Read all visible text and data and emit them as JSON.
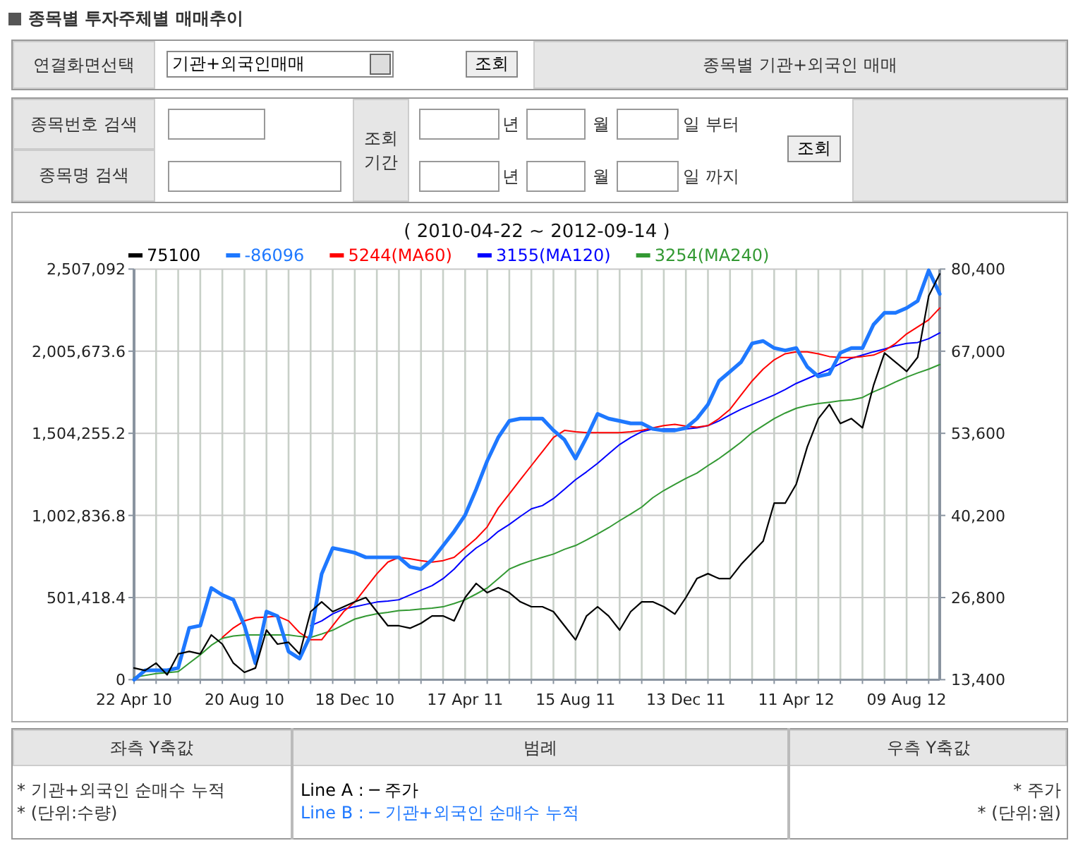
{
  "chart_data": {
    "type": "line",
    "title": "종목별 투자주체별 매매추이",
    "subtitle": "( 2010-04-22 ~ 2012-09-14 )",
    "annotations": [
      "연결화면선택",
      "기관+외국인매매",
      "조회",
      "종목별 기관+외국인 매매",
      "종목번호 검색",
      "종목명 검색",
      "조회 기간",
      "년",
      "월",
      "일 부터",
      "년",
      "월",
      "일 까지",
      "조회",
      "좌측 Y축값",
      "범례",
      "우측 Y축값",
      "* 기관+외국인 순매수 누적",
      "* (단위:수량)",
      "Line A : ─ 주가",
      "Line B : ─ 기관+외국인 순매수 누적",
      "* 주가",
      "* (단위:원)"
    ],
    "x": [
      "2010-04-22",
      "2010-05-04",
      "2010-05-16",
      "2010-05-28",
      "2010-06-09",
      "2010-06-21",
      "2010-07-03",
      "2010-07-15",
      "2010-07-27",
      "2010-08-08",
      "2010-08-20",
      "2010-09-01",
      "2010-09-13",
      "2010-09-25",
      "2010-10-07",
      "2010-10-19",
      "2010-10-31",
      "2010-11-12",
      "2010-11-24",
      "2010-12-06",
      "2010-12-18",
      "2010-12-30",
      "2011-01-11",
      "2011-01-23",
      "2011-02-04",
      "2011-02-16",
      "2011-02-28",
      "2011-03-12",
      "2011-03-24",
      "2011-04-05",
      "2011-04-17",
      "2011-04-29",
      "2011-05-11",
      "2011-05-23",
      "2011-06-04",
      "2011-06-16",
      "2011-06-28",
      "2011-07-10",
      "2011-07-22",
      "2011-08-03",
      "2011-08-15",
      "2011-08-27",
      "2011-09-08",
      "2011-09-20",
      "2011-10-02",
      "2011-10-14",
      "2011-10-26",
      "2011-11-07",
      "2011-11-19",
      "2011-12-01",
      "2011-12-13",
      "2011-12-25",
      "2012-01-06",
      "2012-01-18",
      "2012-01-30",
      "2012-02-11",
      "2012-02-23",
      "2012-03-06",
      "2012-03-18",
      "2012-03-30",
      "2012-04-11",
      "2012-04-23",
      "2012-05-05",
      "2012-05-17",
      "2012-05-29",
      "2012-06-10",
      "2012-06-22",
      "2012-07-04",
      "2012-07-16",
      "2012-07-28",
      "2012-08-09",
      "2012-08-21",
      "2012-09-02",
      "2012-09-14"
    ],
    "series": [
      {
        "name": "75100",
        "color": "#000000",
        "axis": "y2",
        "values": [
          15300,
          14900,
          16100,
          14200,
          17600,
          18000,
          17600,
          20700,
          19200,
          16100,
          14600,
          15300,
          21500,
          19200,
          19500,
          17600,
          24500,
          26100,
          24500,
          25300,
          26100,
          26800,
          24500,
          22200,
          22200,
          21800,
          22600,
          23800,
          23800,
          23000,
          26800,
          29100,
          27600,
          28400,
          27600,
          26100,
          25300,
          25300,
          24500,
          22200,
          19900,
          23800,
          25300,
          23800,
          21500,
          24500,
          26100,
          26100,
          25300,
          24100,
          26800,
          29900,
          30700,
          29900,
          29900,
          32200,
          34100,
          36000,
          42200,
          42200,
          45300,
          51400,
          56000,
          58300,
          55200,
          56000,
          54500,
          61400,
          66700,
          65200,
          63700,
          66000,
          76000,
          79600
        ]
      },
      {
        "name": "-86096",
        "color": "#1e78ff",
        "values": [
          0,
          57000,
          57000,
          57000,
          72000,
          316000,
          330000,
          560000,
          517000,
          488000,
          330000,
          100000,
          416000,
          388000,
          172000,
          129000,
          273000,
          646000,
          804000,
          790000,
          775000,
          747000,
          747000,
          747000,
          747000,
          689000,
          675000,
          732000,
          818000,
          905000,
          1005000,
          1163000,
          1336000,
          1479000,
          1580000,
          1594000,
          1594000,
          1594000,
          1522000,
          1465000,
          1350000,
          1479000,
          1623000,
          1594000,
          1580000,
          1565000,
          1565000,
          1531000,
          1522000,
          1522000,
          1537000,
          1594000,
          1680000,
          1824000,
          1881000,
          1939000,
          2053000,
          2068000,
          2025000,
          2010000,
          2025000,
          1910000,
          1852000,
          1867000,
          1996000,
          2025000,
          2025000,
          2168000,
          2240000,
          2240000,
          2269000,
          2312000,
          2499000,
          2355000
        ]
      },
      {
        "name": "5244(MA60)",
        "color": "#ff0000",
        "values": [
          null,
          null,
          null,
          null,
          null,
          null,
          null,
          null,
          258000,
          316000,
          359000,
          379000,
          382000,
          388000,
          359000,
          287000,
          244000,
          244000,
          330000,
          416000,
          474000,
          560000,
          646000,
          718000,
          747000,
          738000,
          727000,
          718000,
          727000,
          747000,
          804000,
          862000,
          933000,
          1048000,
          1134000,
          1221000,
          1307000,
          1393000,
          1479000,
          1522000,
          1514000,
          1508000,
          1508000,
          1508000,
          1508000,
          1514000,
          1522000,
          1537000,
          1551000,
          1559000,
          1548000,
          1542000,
          1551000,
          1594000,
          1651000,
          1738000,
          1824000,
          1896000,
          1953000,
          1990000,
          2002000,
          2002000,
          1990000,
          1973000,
          1967000,
          1967000,
          1973000,
          1982000,
          2010000,
          2053000,
          2111000,
          2154000,
          2197000,
          2269000
        ]
      },
      {
        "name": "3155(MA120)",
        "color": "#0000ff",
        "values": [
          null,
          null,
          null,
          null,
          null,
          null,
          null,
          null,
          null,
          null,
          null,
          null,
          null,
          null,
          null,
          null,
          330000,
          359000,
          402000,
          431000,
          445000,
          460000,
          474000,
          480000,
          488000,
          517000,
          546000,
          574000,
          617000,
          675000,
          747000,
          804000,
          847000,
          905000,
          948000,
          997000,
          1043000,
          1063000,
          1106000,
          1163000,
          1221000,
          1269000,
          1321000,
          1379000,
          1436000,
          1479000,
          1514000,
          1531000,
          1531000,
          1531000,
          1531000,
          1537000,
          1551000,
          1580000,
          1617000,
          1651000,
          1680000,
          1709000,
          1738000,
          1772000,
          1809000,
          1838000,
          1867000,
          1896000,
          1930000,
          1962000,
          1982000,
          2002000,
          2019000,
          2039000,
          2053000,
          2059000,
          2082000,
          2117000
        ]
      },
      {
        "name": "3254(MA240)",
        "color": "#339933",
        "values": [
          14000,
          26000,
          37000,
          43000,
          49000,
          101000,
          152000,
          210000,
          253000,
          267000,
          273000,
          273000,
          273000,
          273000,
          273000,
          264000,
          258000,
          279000,
          302000,
          336000,
          370000,
          388000,
          402000,
          411000,
          422000,
          425000,
          431000,
          437000,
          445000,
          465000,
          488000,
          523000,
          560000,
          617000,
          675000,
          704000,
          727000,
          747000,
          767000,
          796000,
          819000,
          853000,
          890000,
          928000,
          971000,
          1011000,
          1054000,
          1111000,
          1155000,
          1192000,
          1229000,
          1261000,
          1307000,
          1350000,
          1399000,
          1450000,
          1508000,
          1551000,
          1594000,
          1628000,
          1657000,
          1674000,
          1686000,
          1694000,
          1703000,
          1709000,
          1723000,
          1758000,
          1786000,
          1818000,
          1847000,
          1873000,
          1896000,
          1924000
        ]
      }
    ],
    "xlim": [
      "2010-04-22",
      "2012-09-14"
    ],
    "xticks": [
      {
        "value": "2010-04-22",
        "label": "22 Apr 10"
      },
      {
        "value": "2010-05-16",
        "label": null
      },
      {
        "value": "2010-06-09",
        "label": null
      },
      {
        "value": "2010-07-03",
        "label": null
      },
      {
        "value": "2010-07-27",
        "label": null
      },
      {
        "value": "2010-08-20",
        "label": "20 Aug 10"
      },
      {
        "value": "2010-09-13",
        "label": null
      },
      {
        "value": "2010-10-07",
        "label": null
      },
      {
        "value": "2010-10-31",
        "label": null
      },
      {
        "value": "2010-11-24",
        "label": null
      },
      {
        "value": "2010-12-18",
        "label": "18 Dec 10"
      },
      {
        "value": "2011-01-11",
        "label": null
      },
      {
        "value": "2011-02-04",
        "label": null
      },
      {
        "value": "2011-02-28",
        "label": null
      },
      {
        "value": "2011-03-24",
        "label": null
      },
      {
        "value": "2011-04-17",
        "label": "17 Apr 11"
      },
      {
        "value": "2011-05-11",
        "label": null
      },
      {
        "value": "2011-06-04",
        "label": null
      },
      {
        "value": "2011-06-28",
        "label": null
      },
      {
        "value": "2011-07-22",
        "label": null
      },
      {
        "value": "2011-08-15",
        "label": "15 Aug 11"
      },
      {
        "value": "2011-09-08",
        "label": null
      },
      {
        "value": "2011-10-02",
        "label": null
      },
      {
        "value": "2011-10-26",
        "label": null
      },
      {
        "value": "2011-11-19",
        "label": null
      },
      {
        "value": "2011-12-13",
        "label": "13 Dec 11"
      },
      {
        "value": "2012-01-06",
        "label": null
      },
      {
        "value": "2012-01-30",
        "label": null
      },
      {
        "value": "2012-02-23",
        "label": null
      },
      {
        "value": "2012-03-18",
        "label": null
      },
      {
        "value": "2012-04-11",
        "label": "11 Apr 12"
      },
      {
        "value": "2012-05-05",
        "label": null
      },
      {
        "value": "2012-05-29",
        "label": null
      },
      {
        "value": "2012-06-22",
        "label": null
      },
      {
        "value": "2012-07-16",
        "label": null
      },
      {
        "value": "2012-08-09",
        "label": "09 Aug 12"
      },
      {
        "value": "2012-09-02",
        "label": null
      }
    ],
    "ylim": [
      0,
      2507092
    ],
    "yticks": [
      0,
      {
        "value": 501418.4,
        "label": "501,418.4"
      },
      {
        "value": 1002836.8,
        "label": "1,002,836.8"
      },
      {
        "value": 1504255.2,
        "label": "1,504,255.2"
      },
      {
        "value": 2005673.6,
        "label": "2,005,673.6"
      },
      {
        "value": 2507092,
        "label": "2,507,092"
      }
    ],
    "y2lim": [
      13400,
      80400
    ],
    "y2ticks": [
      {
        "value": 13400,
        "label": "13,400"
      },
      {
        "value": 26800,
        "label": "26,800"
      },
      {
        "value": 40200,
        "label": "40,200"
      },
      {
        "value": 53600,
        "label": "53,600"
      },
      {
        "value": 67000,
        "label": "67,000"
      },
      {
        "value": 80400,
        "label": "80,400"
      }
    ],
    "grid": true,
    "legend": "top"
  }
}
